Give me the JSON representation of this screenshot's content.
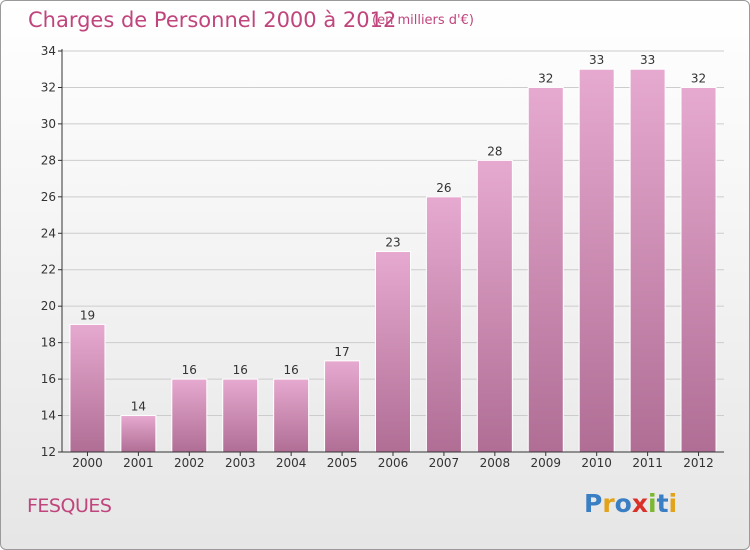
{
  "title": "Charges de Personnel 2000 à 2012",
  "subtitle": "(en milliers d'€)",
  "commune": "FESQUES",
  "logo": {
    "letters": [
      "P",
      "r",
      "o",
      "x",
      "i",
      "t",
      "i"
    ],
    "colors": [
      "#3a7fc4",
      "#e2a21a",
      "#3a7fc4",
      "#d9312a",
      "#7cb82f",
      "#3a7fc4",
      "#e2a21a"
    ]
  },
  "colors": {
    "bar_top": "#e6a9cf",
    "bar_bottom": "#b06e95",
    "title": "#c0457c",
    "axis": "#333333",
    "grid": "#cccccc"
  },
  "chart_data": {
    "type": "bar",
    "categories": [
      "2000",
      "2001",
      "2002",
      "2003",
      "2004",
      "2005",
      "2006",
      "2007",
      "2008",
      "2009",
      "2010",
      "2011",
      "2012"
    ],
    "values": [
      19,
      14,
      16,
      16,
      16,
      17,
      23,
      26,
      28,
      32,
      33,
      33,
      32
    ],
    "ylim": [
      12,
      34
    ],
    "yticks": [
      12,
      14,
      16,
      18,
      20,
      22,
      24,
      26,
      28,
      30,
      32,
      34
    ],
    "grid": true,
    "legend": "none"
  }
}
